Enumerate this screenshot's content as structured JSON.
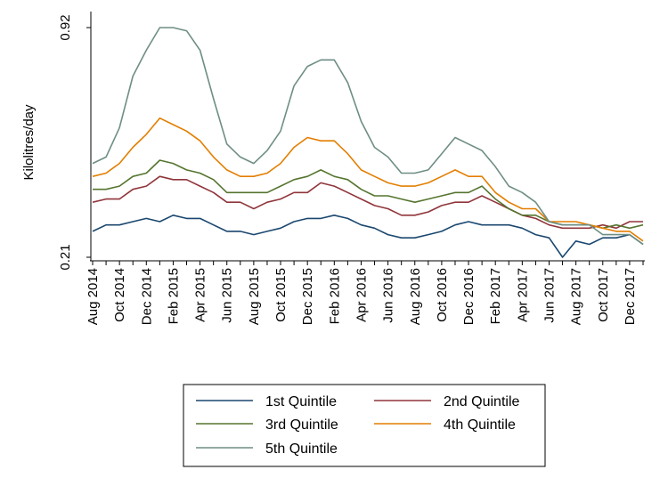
{
  "chart_data": {
    "type": "line",
    "title": "",
    "xlabel": "",
    "ylabel": "Kilolitres/day",
    "ylim": [
      0.21,
      0.92
    ],
    "y_ticks": [
      "0.21",
      "0.92"
    ],
    "grid": false,
    "legend_position": "bottom",
    "x": [
      "Aug 2014",
      "Sep 2014",
      "Oct 2014",
      "Nov 2014",
      "Dec 2014",
      "Jan 2015",
      "Feb 2015",
      "Mar 2015",
      "Apr 2015",
      "May 2015",
      "Jun 2015",
      "Jul 2015",
      "Aug 2015",
      "Sep 2015",
      "Oct 2015",
      "Nov 2015",
      "Dec 2015",
      "Jan 2016",
      "Feb 2016",
      "Mar 2016",
      "Apr 2016",
      "May 2016",
      "Jun 2016",
      "Jul 2016",
      "Aug 2016",
      "Sep 2016",
      "Oct 2016",
      "Nov 2016",
      "Dec 2016",
      "Jan 2017",
      "Feb 2017",
      "Mar 2017",
      "Apr 2017",
      "May 2017",
      "Jun 2017",
      "Jul 2017",
      "Aug 2017",
      "Sep 2017",
      "Oct 2017",
      "Nov 2017",
      "Dec 2017",
      "Jan 2018"
    ],
    "x_tick_labels": [
      "Aug 2014",
      "Oct 2014",
      "Dec 2014",
      "Feb 2015",
      "Apr 2015",
      "Jun 2015",
      "Aug 2015",
      "Oct 2015",
      "Dec 2015",
      "Feb 2016",
      "Apr 2016",
      "Jun 2016",
      "Aug 2016",
      "Oct 2016",
      "Dec 2016",
      "Feb 2017",
      "Apr 2017",
      "Jun 2017",
      "Aug 2017",
      "Oct 2017",
      "Dec 2017"
    ],
    "series": [
      {
        "name": "1st Quintile",
        "color": "#1a476f",
        "values": [
          0.29,
          0.31,
          0.31,
          0.32,
          0.33,
          0.32,
          0.34,
          0.33,
          0.33,
          0.31,
          0.29,
          0.29,
          0.28,
          0.29,
          0.3,
          0.32,
          0.33,
          0.33,
          0.34,
          0.33,
          0.31,
          0.3,
          0.28,
          0.27,
          0.27,
          0.28,
          0.29,
          0.31,
          0.32,
          0.31,
          0.31,
          0.31,
          0.3,
          0.28,
          0.27,
          0.21,
          0.26,
          0.25,
          0.27,
          0.27,
          0.28,
          0.25
        ]
      },
      {
        "name": "2nd Quintile",
        "color": "#90353b",
        "values": [
          0.38,
          0.39,
          0.39,
          0.42,
          0.43,
          0.46,
          0.45,
          0.45,
          0.43,
          0.41,
          0.38,
          0.38,
          0.36,
          0.38,
          0.39,
          0.41,
          0.41,
          0.44,
          0.43,
          0.41,
          0.39,
          0.37,
          0.36,
          0.34,
          0.34,
          0.35,
          0.37,
          0.38,
          0.38,
          0.4,
          0.38,
          0.36,
          0.34,
          0.33,
          0.31,
          0.3,
          0.3,
          0.3,
          0.31,
          0.3,
          0.32,
          0.32
        ]
      },
      {
        "name": "3rd Quintile",
        "color": "#55752f",
        "values": [
          0.42,
          0.42,
          0.43,
          0.46,
          0.47,
          0.51,
          0.5,
          0.48,
          0.47,
          0.45,
          0.41,
          0.41,
          0.41,
          0.41,
          0.43,
          0.45,
          0.46,
          0.48,
          0.46,
          0.45,
          0.42,
          0.4,
          0.4,
          0.39,
          0.38,
          0.39,
          0.4,
          0.41,
          0.41,
          0.43,
          0.39,
          0.36,
          0.34,
          0.34,
          0.32,
          0.31,
          0.31,
          0.31,
          0.3,
          0.31,
          0.3,
          0.31
        ]
      },
      {
        "name": "4th Quintile",
        "color": "#e37e00",
        "values": [
          0.46,
          0.47,
          0.5,
          0.55,
          0.59,
          0.64,
          0.62,
          0.6,
          0.57,
          0.52,
          0.48,
          0.46,
          0.46,
          0.47,
          0.5,
          0.55,
          0.58,
          0.57,
          0.57,
          0.53,
          0.48,
          0.46,
          0.44,
          0.43,
          0.43,
          0.44,
          0.46,
          0.48,
          0.46,
          0.46,
          0.41,
          0.38,
          0.36,
          0.36,
          0.32,
          0.32,
          0.32,
          0.31,
          0.3,
          0.29,
          0.29,
          0.26
        ]
      },
      {
        "name": "5th Quintile",
        "color": "#6e8e84",
        "values": [
          0.5,
          0.52,
          0.61,
          0.77,
          0.85,
          0.92,
          0.92,
          0.91,
          0.85,
          0.7,
          0.56,
          0.52,
          0.5,
          0.54,
          0.6,
          0.74,
          0.8,
          0.82,
          0.82,
          0.75,
          0.63,
          0.55,
          0.52,
          0.47,
          0.47,
          0.48,
          0.53,
          0.58,
          0.56,
          0.54,
          0.49,
          0.43,
          0.41,
          0.38,
          0.32,
          0.31,
          0.31,
          0.31,
          0.28,
          0.28,
          0.28,
          0.25
        ]
      }
    ]
  }
}
